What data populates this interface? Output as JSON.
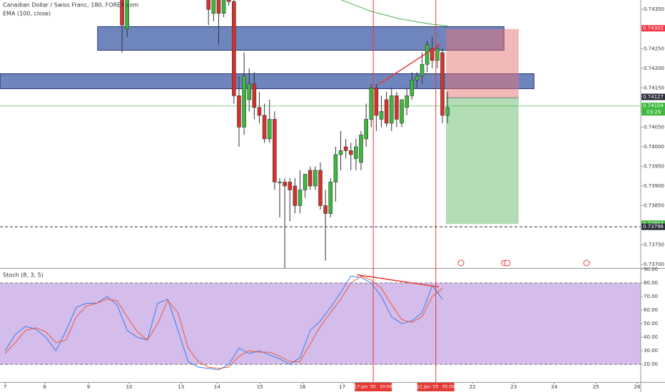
{
  "chart_data": [
    {
      "type": "candlestick",
      "title": "Canadian Dollar / Swiss Franc, 180, FOREX.com",
      "subtitle": "EMA (100, close)",
      "up_color": "#3cb93c",
      "down_color": "#d9302c",
      "xlim": [
        -1,
        125
      ],
      "ylim": [
        0.73691,
        0.74374
      ],
      "yticks": [
        {
          "value": 0.7435,
          "label": "0.74350"
        },
        {
          "value": 0.7425,
          "label": "0.74250"
        },
        {
          "value": 0.742,
          "label": "0.74200"
        },
        {
          "value": 0.7415,
          "label": "0.74150"
        },
        {
          "value": 0.7405,
          "label": "0.74050"
        },
        {
          "value": 0.74,
          "label": "0.74000"
        },
        {
          "value": 0.7395,
          "label": "0.73950"
        },
        {
          "value": 0.739,
          "label": "0.73900"
        },
        {
          "value": 0.7385,
          "label": "0.73850"
        },
        {
          "value": 0.7375,
          "label": "0.73750"
        },
        {
          "value": 0.737,
          "label": "0.73700"
        }
      ],
      "x": [
        23,
        24,
        40,
        41,
        42,
        43,
        44,
        45,
        46,
        47,
        48,
        49,
        50,
        51,
        52,
        53,
        54,
        55,
        56,
        57,
        58,
        59,
        60,
        61,
        62,
        63,
        64,
        65,
        66,
        67,
        68,
        69,
        70,
        71,
        72,
        73,
        74,
        75,
        76,
        77,
        78,
        79,
        80,
        81,
        82,
        83,
        84,
        85,
        86,
        87
      ],
      "open": [
        0.7438,
        0.743,
        0.7439,
        0.7434,
        0.7438,
        0.7434,
        0.7439,
        0.7437,
        0.7413,
        0.7405,
        0.7412,
        0.7416,
        0.741,
        0.7408,
        0.7402,
        0.7407,
        0.7391,
        0.7391,
        0.7391,
        0.739,
        0.7385,
        0.7389,
        0.7394,
        0.739,
        0.7394,
        0.7385,
        0.7383,
        0.7391,
        0.7398,
        0.74,
        0.7399,
        0.7397,
        0.7396,
        0.7402,
        0.7407,
        0.7415,
        0.7407,
        0.7412,
        0.7406,
        0.7413,
        0.7406,
        0.741,
        0.7413,
        0.7417,
        0.7418,
        0.7421,
        0.7425,
        0.7422,
        0.7424,
        0.7408
      ],
      "high": [
        0.744,
        0.744,
        0.744,
        0.744,
        0.744,
        0.744,
        0.744,
        0.7438,
        0.7418,
        0.7424,
        0.742,
        0.7419,
        0.7414,
        0.7411,
        0.7412,
        0.7409,
        0.7392,
        0.7392,
        0.7392,
        0.7392,
        0.7394,
        0.7393,
        0.7395,
        0.7395,
        0.7396,
        0.7389,
        0.7392,
        0.74,
        0.7404,
        0.7402,
        0.7401,
        0.7402,
        0.7404,
        0.7411,
        0.7416,
        0.7416,
        0.7413,
        0.7414,
        0.7415,
        0.7414,
        0.7412,
        0.7415,
        0.7419,
        0.7419,
        0.7424,
        0.7427,
        0.7428,
        0.7426,
        0.7425,
        0.7414
      ],
      "low": [
        0.7424,
        0.7428,
        0.7431,
        0.7432,
        0.7426,
        0.7433,
        0.7436,
        0.7411,
        0.74,
        0.7403,
        0.7409,
        0.7407,
        0.7406,
        0.7401,
        0.7401,
        0.7389,
        0.7382,
        0.7369,
        0.7381,
        0.7383,
        0.7383,
        0.7387,
        0.7389,
        0.7389,
        0.7384,
        0.7371,
        0.7382,
        0.7386,
        0.7394,
        0.7397,
        0.7394,
        0.7394,
        0.7394,
        0.74,
        0.7405,
        0.7404,
        0.7405,
        0.7405,
        0.7404,
        0.7405,
        0.7405,
        0.7408,
        0.7412,
        0.7415,
        0.7416,
        0.7419,
        0.742,
        0.742,
        0.7406,
        0.7406
      ],
      "close": [
        0.7431,
        0.7438,
        0.7435,
        0.7438,
        0.7434,
        0.7439,
        0.7437,
        0.7413,
        0.7405,
        0.7418,
        0.7416,
        0.741,
        0.7408,
        0.7402,
        0.7407,
        0.7391,
        0.7391,
        0.739,
        0.7389,
        0.7385,
        0.7389,
        0.7393,
        0.739,
        0.7394,
        0.7385,
        0.7383,
        0.7391,
        0.7398,
        0.7399,
        0.7399,
        0.7398,
        0.74,
        0.7403,
        0.7407,
        0.7415,
        0.7408,
        0.7409,
        0.7406,
        0.7413,
        0.7407,
        0.7412,
        0.7413,
        0.7417,
        0.7418,
        0.7421,
        0.7426,
        0.7422,
        0.7425,
        0.7408,
        0.741
      ],
      "ema": {
        "color": "#4caf50",
        "x": [
          66,
          72,
          78,
          84,
          87
        ],
        "values": [
          0.74375,
          0.74345,
          0.74325,
          0.74312,
          0.74308
        ]
      },
      "zones": [
        {
          "x0": 18.2,
          "x1": 98.1,
          "top": 0.74306,
          "bottom": 0.74246,
          "color": "#3f5ca8"
        },
        {
          "x0": -1,
          "x1": 104,
          "top": 0.74186,
          "bottom": 0.74148,
          "color": "#3f5ca8"
        }
      ],
      "position": {
        "x0": 86.7,
        "x1": 101,
        "stop": 0.743,
        "entry": 0.74125,
        "target": 0.73803
      },
      "trendline": {
        "x0": 73.2,
        "y0": 0.74157,
        "x1": 85.7,
        "y1": 0.74262,
        "color": "#e53935"
      },
      "price_labels": [
        {
          "value": 0.74302,
          "label": "0.74302",
          "color": "#f23645"
        },
        {
          "value": 0.74127,
          "label": "0.74127",
          "color": "#2a2e39"
        },
        {
          "value": 0.74104,
          "label": "0.74104",
          "color": "#3cb93c",
          "line": "solid"
        },
        {
          "value": 0.73804,
          "label": "0.73804",
          "color": "#3cb93c"
        },
        {
          "value": 0.73796,
          "label": "0.73796",
          "color": "#2a2e39",
          "line": "dashed"
        }
      ],
      "countdown": "03:29"
    },
    {
      "type": "line",
      "title": "Stoch (8, 3, 5)",
      "xlim": [
        -1,
        125
      ],
      "ylim": [
        7,
        91
      ],
      "yticks": [
        {
          "value": 90,
          "label": "90.00"
        },
        {
          "value": 80,
          "label": "80.00"
        },
        {
          "value": 70,
          "label": "70.00"
        },
        {
          "value": 60,
          "label": "60.00"
        },
        {
          "value": 50,
          "label": "50.00"
        },
        {
          "value": 40,
          "label": "40.00"
        },
        {
          "value": 30,
          "label": "30.00"
        },
        {
          "value": 20,
          "label": "20.00"
        }
      ],
      "xticks": [
        {
          "value": 0,
          "label": "7"
        },
        {
          "value": 7.8,
          "label": "8"
        },
        {
          "value": 16.4,
          "label": "9"
        },
        {
          "value": 24.4,
          "label": "10"
        },
        {
          "value": 34.6,
          "label": "13"
        },
        {
          "value": 41.7,
          "label": "14"
        },
        {
          "value": 50.1,
          "label": "15"
        },
        {
          "value": 58.5,
          "label": "16"
        },
        {
          "value": 66.3,
          "label": "17"
        },
        {
          "value": 91.9,
          "label": "22"
        },
        {
          "value": 100,
          "label": "23"
        },
        {
          "value": 108,
          "label": "24"
        },
        {
          "value": 116.2,
          "label": "25"
        },
        {
          "value": 124.3,
          "label": "26"
        }
      ],
      "band": [
        20,
        80
      ],
      "band_color": "#c9abe6",
      "x": [
        0,
        2,
        4,
        6,
        8,
        10,
        12,
        14,
        16,
        18,
        20,
        22,
        24,
        26,
        28,
        30,
        32,
        34,
        36,
        38,
        40,
        42,
        44,
        46,
        48,
        50,
        52,
        54,
        56,
        58,
        60,
        62,
        64,
        66,
        68,
        70,
        72,
        74,
        76,
        78,
        80,
        82,
        84,
        86
      ],
      "series": [
        {
          "color": "#3d7ee8",
          "values": [
            30,
            42,
            48,
            46,
            40,
            30,
            45,
            62,
            65,
            65,
            70,
            64,
            45,
            40,
            38,
            65,
            68,
            45,
            22,
            18,
            17,
            16,
            20,
            32,
            28,
            30,
            27,
            24,
            20,
            25,
            45,
            52,
            62,
            73,
            85,
            84,
            80,
            70,
            55,
            50,
            52,
            58,
            78,
            68
          ]
        },
        {
          "color": "#f05a3c",
          "values": [
            28,
            36,
            45,
            47,
            44,
            36,
            38,
            55,
            63,
            65,
            68,
            67,
            55,
            44,
            38,
            50,
            67,
            58,
            32,
            22,
            18,
            17,
            18,
            26,
            30,
            29,
            29,
            26,
            22,
            22,
            35,
            48,
            58,
            68,
            80,
            85,
            82,
            76,
            64,
            53,
            51,
            55,
            70,
            76
          ]
        }
      ],
      "trendline": {
        "x0": 69.2,
        "y0": 86,
        "x1": 85.3,
        "y1": 77,
        "color": "#e53935"
      },
      "markers": [
        {
          "x": 72.4,
          "label": "17 Jan '20   20:00"
        },
        {
          "x": 84.7,
          "label": "21 Jan '20   05:00"
        }
      ],
      "marker_color": "#e53935"
    }
  ]
}
